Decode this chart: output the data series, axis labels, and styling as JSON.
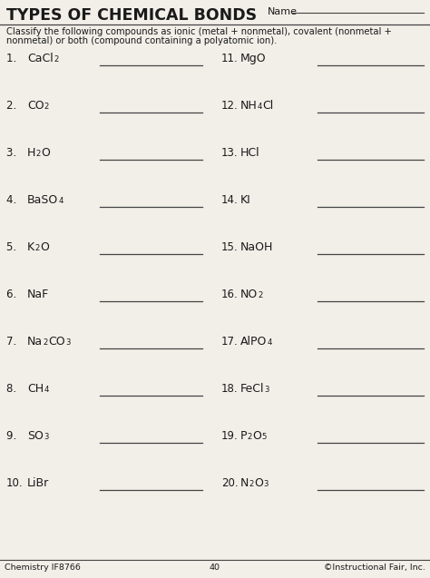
{
  "title": "TYPES OF CHEMICAL BONDS",
  "name_label": "Name",
  "instruction_line1": "Classify the following compounds as ionic (metal + nonmetal), covalent (nonmetal +",
  "instruction_line2": "nonmetal) or both (compound containing a polyatomic ion).",
  "left_items": [
    {
      "num": "1.  ",
      "parts": [
        [
          "CaCl",
          false
        ],
        [
          "2",
          true
        ]
      ]
    },
    {
      "num": "2.  ",
      "parts": [
        [
          "CO",
          false
        ],
        [
          "2",
          true
        ]
      ]
    },
    {
      "num": "3.  ",
      "parts": [
        [
          "H",
          false
        ],
        [
          "2",
          true
        ],
        [
          "O",
          false
        ]
      ]
    },
    {
      "num": "4.  ",
      "parts": [
        [
          "BaSO",
          false
        ],
        [
          "4",
          true
        ]
      ]
    },
    {
      "num": "5.  ",
      "parts": [
        [
          "K",
          false
        ],
        [
          "2",
          true
        ],
        [
          "O",
          false
        ]
      ]
    },
    {
      "num": "6.  ",
      "parts": [
        [
          "NaF",
          false
        ]
      ]
    },
    {
      "num": "7.  ",
      "parts": [
        [
          "Na",
          false
        ],
        [
          "2",
          true
        ],
        [
          "CO",
          false
        ],
        [
          "3",
          true
        ]
      ]
    },
    {
      "num": "8.  ",
      "parts": [
        [
          "CH",
          false
        ],
        [
          "4",
          true
        ]
      ]
    },
    {
      "num": "9.  ",
      "parts": [
        [
          "SO",
          false
        ],
        [
          "3",
          true
        ]
      ]
    },
    {
      "num": "10.",
      "parts": [
        [
          "LiBr",
          false
        ]
      ]
    }
  ],
  "right_items": [
    {
      "num": "11.",
      "parts": [
        [
          "MgO",
          false
        ]
      ]
    },
    {
      "num": "12.",
      "parts": [
        [
          "NH",
          false
        ],
        [
          "4",
          true
        ],
        [
          "Cl",
          false
        ]
      ]
    },
    {
      "num": "13.",
      "parts": [
        [
          "HCl",
          false
        ]
      ]
    },
    {
      "num": "14.",
      "parts": [
        [
          "KI",
          false
        ]
      ]
    },
    {
      "num": "15.",
      "parts": [
        [
          "NaOH",
          false
        ]
      ]
    },
    {
      "num": "16.",
      "parts": [
        [
          "NO",
          false
        ],
        [
          "2",
          true
        ]
      ]
    },
    {
      "num": "17.",
      "parts": [
        [
          "AlPO",
          false
        ],
        [
          "4",
          true
        ]
      ]
    },
    {
      "num": "18.",
      "parts": [
        [
          "FeCl",
          false
        ],
        [
          "3",
          true
        ]
      ]
    },
    {
      "num": "19.",
      "parts": [
        [
          "P",
          false
        ],
        [
          "2",
          true
        ],
        [
          "O",
          false
        ],
        [
          "5",
          true
        ]
      ]
    },
    {
      "num": "20.",
      "parts": [
        [
          "N",
          false
        ],
        [
          "2",
          true
        ],
        [
          "O",
          false
        ],
        [
          "3",
          true
        ]
      ]
    }
  ],
  "footer_left": "Chemistry IF8766",
  "footer_center": "40",
  "footer_right": "©Instructional Fair, Inc.",
  "bg_color": "#f2efe9",
  "text_color": "#1a1a1a",
  "line_color": "#444444"
}
